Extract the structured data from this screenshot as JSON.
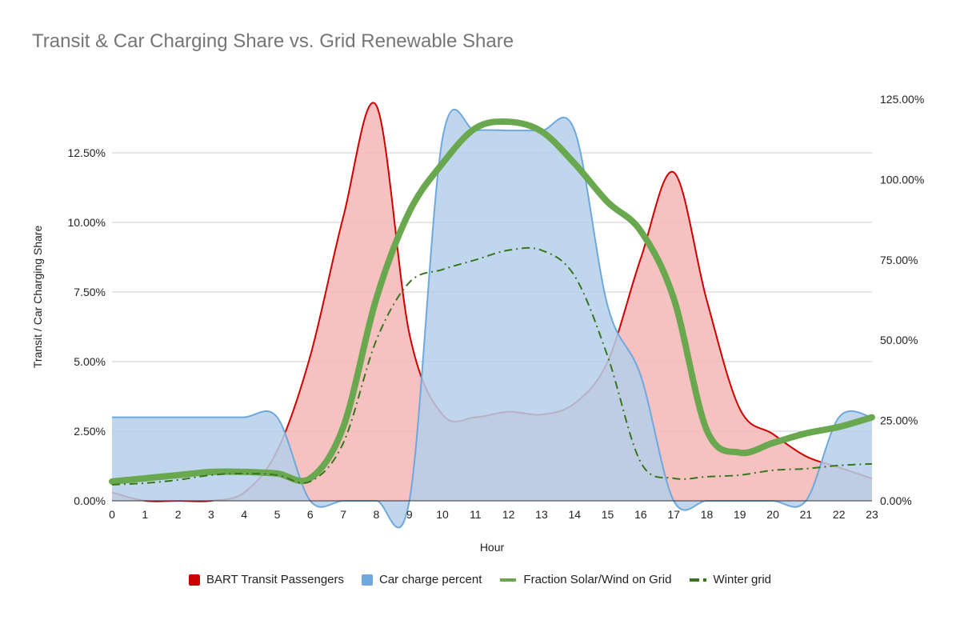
{
  "chart_data": {
    "type": "area",
    "title": "Transit & Car Charging Share vs. Grid Renewable Share",
    "xlabel": "Hour",
    "ylabel": "Transit / Car Charging Share",
    "y2label": "",
    "x": [
      0,
      1,
      2,
      3,
      4,
      5,
      6,
      7,
      8,
      9,
      10,
      11,
      12,
      13,
      14,
      15,
      16,
      17,
      18,
      19,
      20,
      21,
      22,
      23
    ],
    "x_ticks": [
      "0",
      "1",
      "2",
      "3",
      "4",
      "5",
      "6",
      "7",
      "8",
      "9",
      "10",
      "11",
      "12",
      "13",
      "14",
      "15",
      "16",
      "17",
      "18",
      "19",
      "20",
      "21",
      "22",
      "23"
    ],
    "ylim": [
      0,
      0.15
    ],
    "y_ticks": [
      0,
      0.025,
      0.05,
      0.075,
      0.1,
      0.125
    ],
    "y_tick_labels": [
      "0.00%",
      "2.50%",
      "5.00%",
      "7.50%",
      "10.00%",
      "12.50%"
    ],
    "y2lim": [
      0,
      1.3
    ],
    "y2_ticks": [
      0,
      0.25,
      0.5,
      0.75,
      1.0,
      1.25
    ],
    "y2_tick_labels": [
      "0.00%",
      "25.00%",
      "50.00%",
      "75.00%",
      "100.00%",
      "125.00%"
    ],
    "grid": true,
    "legend_position": "bottom",
    "series": [
      {
        "name": "BART Transit Passengers",
        "kind": "area",
        "axis": "left",
        "color": "#cc0000",
        "fill": "#f4b6b6",
        "values": [
          0.003,
          0,
          0,
          0,
          0.003,
          0.018,
          0.052,
          0.102,
          0.142,
          0.06,
          0.031,
          0.03,
          0.032,
          0.031,
          0.035,
          0.05,
          0.087,
          0.118,
          0.072,
          0.033,
          0.024,
          0.016,
          0.012,
          0.008
        ]
      },
      {
        "name": "Car charge percent",
        "kind": "area",
        "axis": "left",
        "color": "#6fa8dc",
        "fill": "#b4cfe9",
        "values": [
          0.03,
          0.03,
          0.03,
          0.03,
          0.03,
          0.03,
          0,
          0,
          0,
          0,
          0.13,
          0.133,
          0.133,
          0.133,
          0.133,
          0.07,
          0.045,
          0,
          0,
          0,
          0,
          0,
          0.03,
          0.03
        ]
      },
      {
        "name": "Fraction Solar/Wind on Grid",
        "kind": "line",
        "axis": "right",
        "color": "#6aa84f",
        "dash": "solid",
        "values": [
          0.06,
          0.07,
          0.08,
          0.09,
          0.09,
          0.085,
          0.07,
          0.23,
          0.63,
          0.9,
          1.05,
          1.16,
          1.18,
          1.15,
          1.05,
          0.93,
          0.84,
          0.63,
          0.22,
          0.15,
          0.18,
          0.21,
          0.23,
          0.26
        ]
      },
      {
        "name": "Winter grid",
        "kind": "line",
        "axis": "right",
        "color": "#38761d",
        "dash": "dashdot",
        "values": [
          0.05,
          0.055,
          0.065,
          0.08,
          0.085,
          0.08,
          0.06,
          0.18,
          0.5,
          0.68,
          0.72,
          0.75,
          0.78,
          0.78,
          0.7,
          0.45,
          0.12,
          0.07,
          0.075,
          0.08,
          0.095,
          0.1,
          0.11,
          0.115
        ]
      }
    ]
  }
}
